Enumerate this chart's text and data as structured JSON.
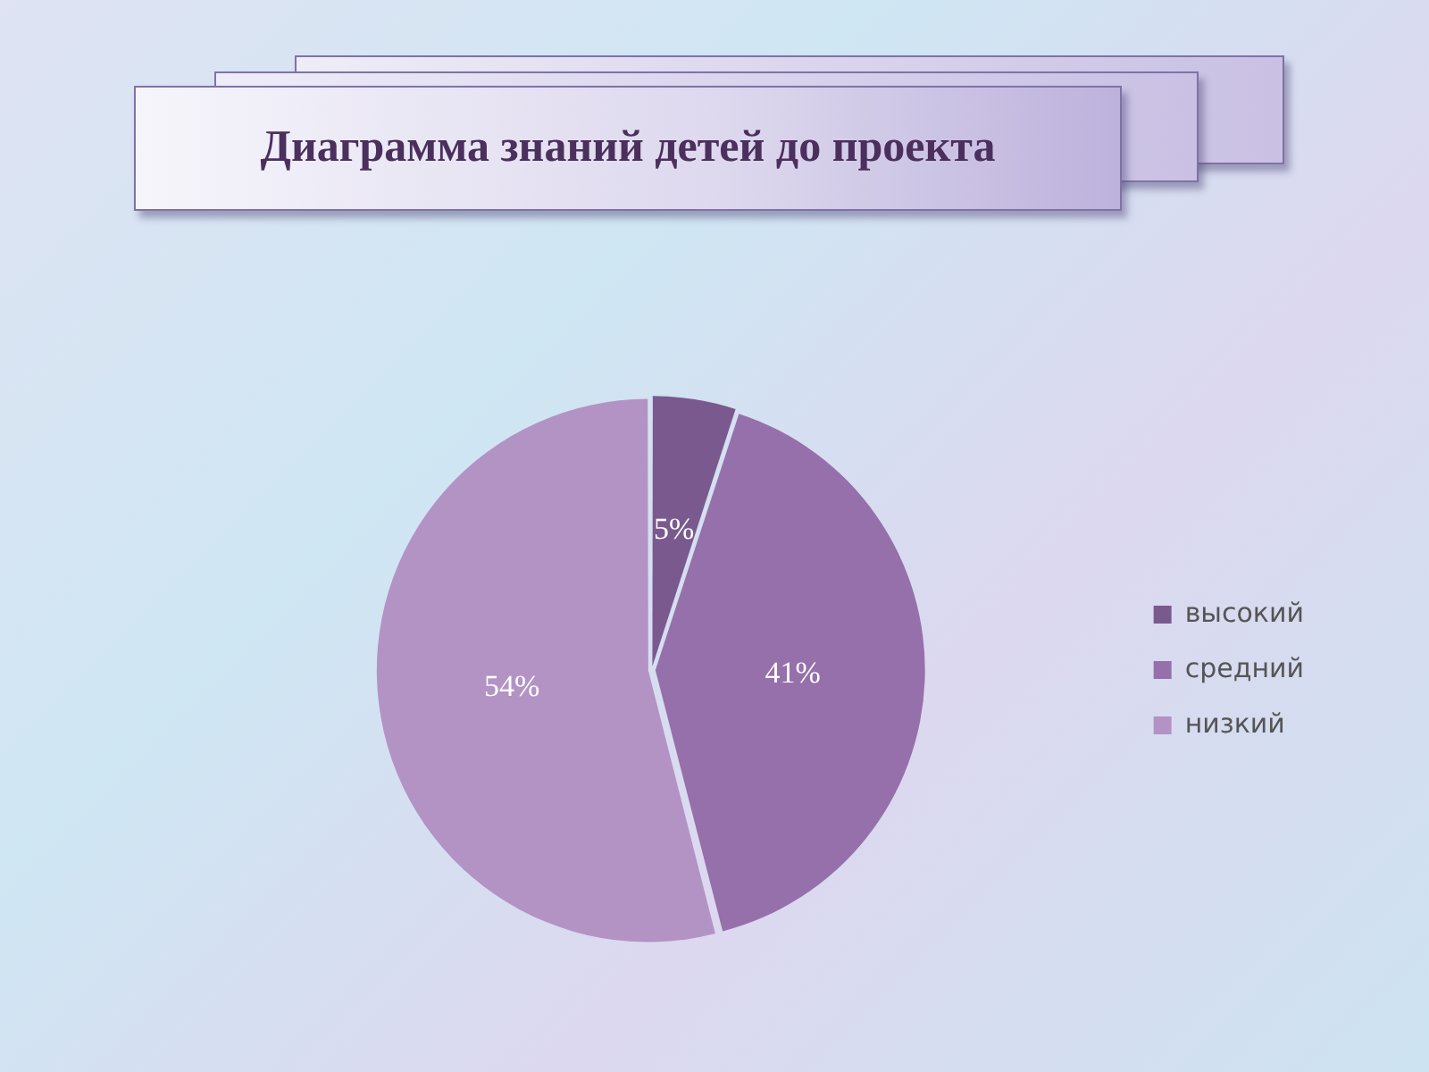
{
  "chart_data": {
    "type": "pie",
    "title": "Диаграмма знаний детей до проекта",
    "categories": [
      "высокий",
      "средний",
      "низкий"
    ],
    "values": [
      5,
      41,
      54
    ],
    "colors": [
      "#7a5a8e",
      "#9670aa",
      "#b393c4"
    ],
    "value_labels": [
      "5%",
      "41%",
      "54%"
    ],
    "legend": "right"
  }
}
